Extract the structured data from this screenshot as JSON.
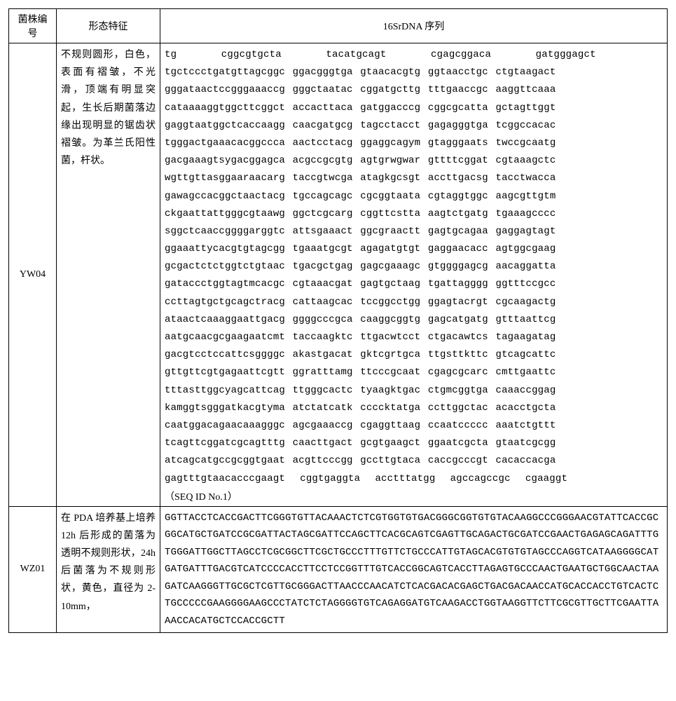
{
  "headers": {
    "col1_line1": "菌株编",
    "col1_line2": "号",
    "col2": "形态特征",
    "col3": "16SrDNA 序列"
  },
  "rows": [
    {
      "id": "YW04",
      "morph": "不规则圆形，白色，表面有褶皱，不光滑，顶端有明显突起，生长后期菌落边缘出现明显的锯齿状褶皱。为革兰氏阳性菌，杆状。",
      "seq_lines": [
        "tg      cggcgtgcta      tacatgcagt      cgagcggaca      gatgggagct",
        "tgctccctgatgttagcggc ggacgggtga gtaacacgtg ggtaacctgc ctgtaagact",
        "gggataactccgggaaaccg gggctaatac cggatgcttg tttgaaccgc aaggttcaaa",
        "cataaaaggtggcttcggct accacttaca gatggacccg cggcgcatta gctagttggt",
        "gaggtaatggctcaccaagg caacgatgcg tagcctacct gagagggtga tcggccacac",
        "tgggactgaaacacggccca aactcctacg ggaggcagym gtagggaats twccgcaatg",
        "gacgaaagtsygacggagca acgccgcgtg agtgrwgwar gttttcggat cgtaaagctc",
        "wgttgttasggaaraacarg taccgtwcga atagkgcsgt accttgacsg tacctwacca",
        "gawagccacggctaactacg tgccagcagc cgcggtaata cgtaggtggc aagcgttgtm",
        "ckgaattattgggcgtaawg ggctcgcarg cggttcstta aagtctgatg tgaaagcccc",
        "sggctcaaccggggarggtc attsgaaact ggcgraactt gagtgcagaa gaggagtagt",
        "ggaaattycacgtgtagcgg tgaaatgcgt agagatgtgt gaggaacacc agtggcgaag",
        "gcgactctctggtctgtaac tgacgctgag gagcgaaagc gtggggagcg aacaggatta",
        "gataccctggtagtmcacgc cgtaaacgat gagtgctaag tgattagggg ggtttccgcc",
        "ccttagtgctgcagctracg cattaagcac tccggcctgg ggagtacrgt cgcaagactg",
        "ataactcaaaggaattgacg ggggcccgca caaggcggtg gagcatgatg gtttaattcg",
        "aatgcaacgcgaagaatcmt taccaagktc ttgacwtcct ctgacawtcs tagaagatag",
        "gacgtcctccattcsggggc akastgacat gktcgrtgca ttgsttkttc gtcagcattc",
        "gttgttcgtgagaattcgtt ggratttamg ttcccgcaat cgagcgcarc cmttgaattc",
        "tttasttggcyagcattcag ttgggcactc tyaagktgac ctgmcggtga caaaccggag",
        "kamggtsgggatkacgtyma atctatcatk ccccktatga ccttggctac acacctgcta",
        "caatggacagaacaaagggc agcgaaaccg cgaggttaag ccaatccccc aaatctgttt",
        "tcagttcggatcgcagtttg caacttgact gcgtgaagct ggaatcgcta gtaatcgcgg",
        "atcagcatgccgcggtgaat acgttcccgg gccttgtaca caccgcccgt cacaccacga",
        "gagtttgtaacacccgaagt  cggtgaggta  acctttatgg  agccagccgc  cgaaggt"
      ],
      "seq_id": "（SEQ ID No.1）"
    },
    {
      "id": "WZ01",
      "morph": "在 PDA 培养基上培养 12h 后形成的菌落为透明不规则形状，24h 后菌落为不规则形状，黄色，直径为 2-10mm，",
      "seq_block": "GGTTACCTCACCGACTTCGGGTGTTACAAACTCTCGTGGTGTGACGGGCGGTGTGTACAAGGCCCGGGAACGTATTCACCGCGGCATGCTGATCCGCGATTACTAGCGATTCCAGCTTCACGCAGTCGAGTTGCAGACTGCGATCCGAACTGAGAGCAGATTTGTGGGATTGGCTTAGCCTCGCGGCTTCGCTGCCCTTTGTTCTGCCCATTGTAGCACGTGTGTAGCCCAGGTCATAAGGGGCATGATGATTTGACGTCATCCCCACCTTCCTCCGGTTTGTCACCGGCAGTCACCTTAGAGTGCCCAACTGAATGCTGGCAACTAAGATCAAGGGTTGCGCTCGTTGCGGGACTTAACCCAACATCTCACGACACGAGCTGACGACAACCATGCACCACCTGTCACTCTGCCCCCGAAGGGGAAGCCCTATCTCTAGGGGTGTCAGAGGATGTCAAGACCTGGTAAGGTTCTTCGCGTTGCTTCGAATTAAACCACATGCTCCACCGCTT"
    }
  ]
}
